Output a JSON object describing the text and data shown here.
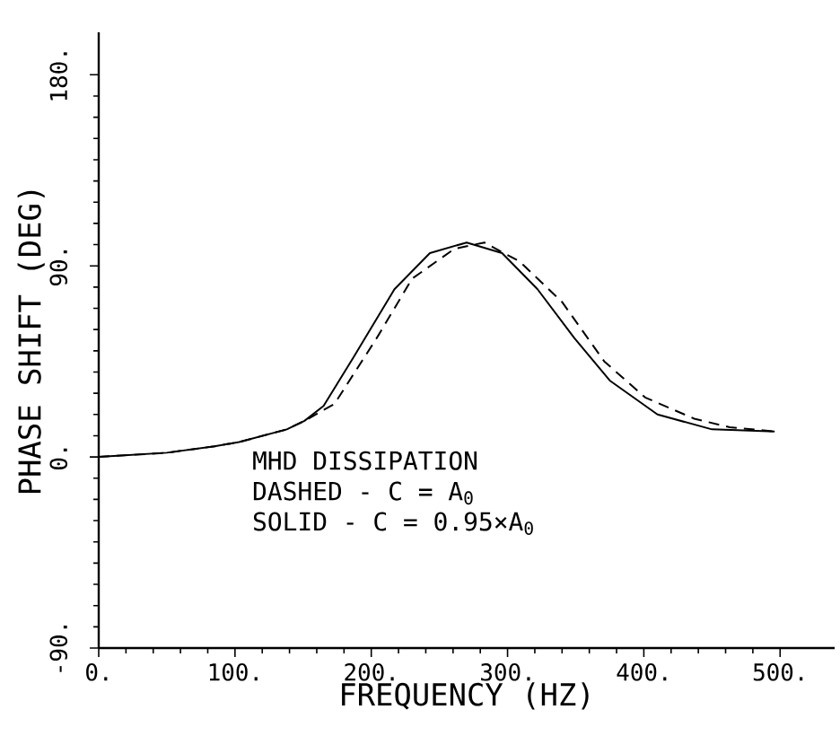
{
  "chart_data": {
    "type": "line",
    "xlabel": "FREQUENCY (HZ)",
    "ylabel": "PHASE SHIFT (DEG)",
    "xlim": [
      0,
      540
    ],
    "ylim": [
      -90,
      200
    ],
    "xticks": [
      {
        "value": 0,
        "label": "0."
      },
      {
        "value": 100,
        "label": "100."
      },
      {
        "value": 200,
        "label": "200."
      },
      {
        "value": 300,
        "label": "300."
      },
      {
        "value": 400,
        "label": "400."
      },
      {
        "value": 500,
        "label": "500."
      }
    ],
    "yticks": [
      {
        "value": -90,
        "label": "-90."
      },
      {
        "value": 0,
        "label": "0."
      },
      {
        "value": 90,
        "label": "90."
      },
      {
        "value": 180,
        "label": "180."
      }
    ],
    "grid": false,
    "marker": "none",
    "annotations": [
      "MHD DISSIPATION",
      "DASHED - C = A$_{0}$",
      "SOLID - C = 0.95×A$_{0}$"
    ],
    "series": [
      {
        "color": "#000000",
        "line_style": "solid",
        "x": [
          0,
          50,
          85,
          103,
          138,
          151,
          165,
          187,
          217,
          243,
          270,
          296,
          322,
          349,
          375,
          410,
          450,
          496
        ],
        "values": [
          0,
          2,
          5,
          7,
          13,
          17,
          24,
          47,
          79,
          96,
          101,
          96,
          79,
          56,
          36,
          20,
          13,
          12
        ]
      },
      {
        "color": "#000000",
        "line_style": "dashed",
        "x": [
          0,
          50,
          85,
          103,
          138,
          151,
          173,
          204,
          230,
          261,
          283,
          309,
          340,
          371,
          401,
          437,
          463,
          496
        ],
        "values": [
          0,
          2,
          5,
          7,
          13,
          17,
          25,
          56,
          84,
          98,
          101,
          92,
          73,
          45,
          28,
          18,
          14,
          12
        ]
      }
    ]
  }
}
